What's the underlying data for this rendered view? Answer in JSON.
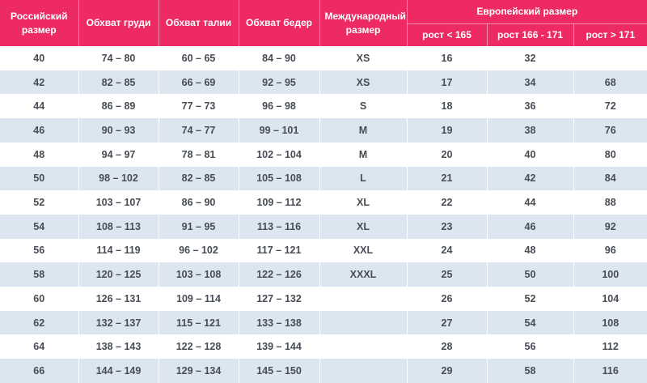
{
  "colors": {
    "header_bg": "#ee2a62",
    "row_alt_bg": "#dce6f1",
    "body_text": "#474c55",
    "header_text": "#ffffff"
  },
  "chart_data": {
    "type": "table",
    "main_headers": [
      "Российский размер",
      "Обхват груди",
      "Обхват талии",
      "Обхват бедер",
      "Международный размер"
    ],
    "header_group": {
      "label": "Европейский размер",
      "span": [
        "рост < 165",
        "рост 166 - 171",
        "рост > 171"
      ]
    },
    "rows": [
      [
        "40",
        "74 – 80",
        "60 – 65",
        "84 – 90",
        "XS",
        "16",
        "32",
        ""
      ],
      [
        "42",
        "82 – 85",
        "66 – 69",
        "92 – 95",
        "XS",
        "17",
        "34",
        "68"
      ],
      [
        "44",
        "86 – 89",
        "77 – 73",
        "96 – 98",
        "S",
        "18",
        "36",
        "72"
      ],
      [
        "46",
        "90 – 93",
        "74 – 77",
        "99 – 101",
        "M",
        "19",
        "38",
        "76"
      ],
      [
        "48",
        "94 – 97",
        "78 – 81",
        "102 – 104",
        "M",
        "20",
        "40",
        "80"
      ],
      [
        "50",
        "98 – 102",
        "82 – 85",
        "105 – 108",
        "L",
        "21",
        "42",
        "84"
      ],
      [
        "52",
        "103 – 107",
        "86 – 90",
        "109 – 112",
        "XL",
        "22",
        "44",
        "88"
      ],
      [
        "54",
        "108 – 113",
        "91 – 95",
        "113 – 116",
        "XL",
        "23",
        "46",
        "92"
      ],
      [
        "56",
        "114 – 119",
        "96 – 102",
        "117 – 121",
        "XXL",
        "24",
        "48",
        "96"
      ],
      [
        "58",
        "120 – 125",
        "103 – 108",
        "122 – 126",
        "XXXL",
        "25",
        "50",
        "100"
      ],
      [
        "60",
        "126 – 131",
        "109 – 114",
        "127 – 132",
        "",
        "26",
        "52",
        "104"
      ],
      [
        "62",
        "132 – 137",
        "115 – 121",
        "133 – 138",
        "",
        "27",
        "54",
        "108"
      ],
      [
        "64",
        "138 – 143",
        "122 – 128",
        "139 – 144",
        "",
        "28",
        "56",
        "112"
      ],
      [
        "66",
        "144 – 149",
        "129 – 134",
        "145 – 150",
        "",
        "29",
        "58",
        "116"
      ]
    ],
    "column_semantics": [
      "russian-size",
      "chest-cm",
      "waist-cm",
      "hips-cm",
      "international-size",
      "eu-height-under-165",
      "eu-height-166-171",
      "eu-height-over-171"
    ]
  }
}
